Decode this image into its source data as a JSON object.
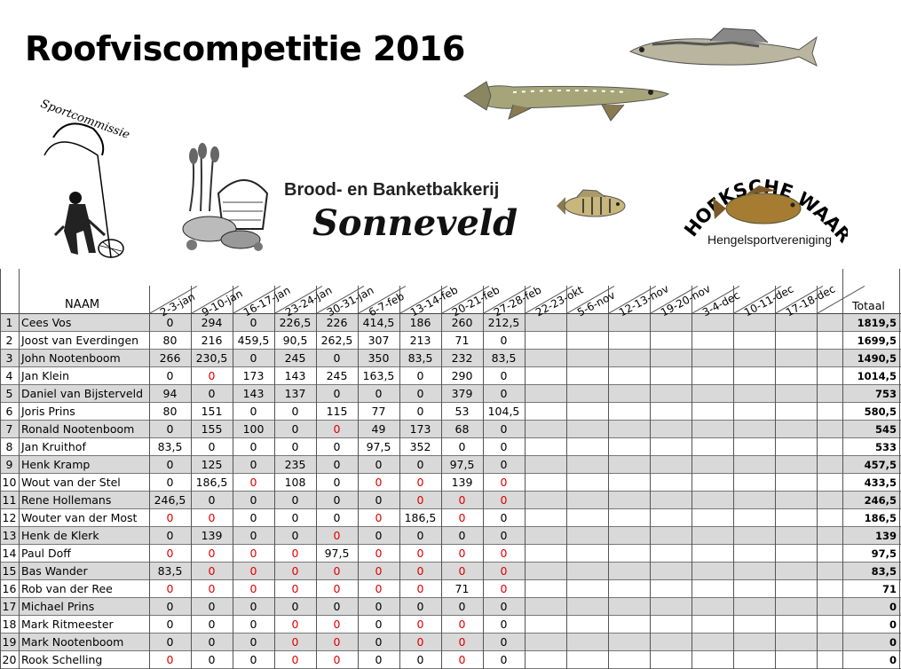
{
  "title": "Roofviscompetitie 2016",
  "sponsor": {
    "line1": "Brood- en Banketbakkerij",
    "line2": "Sonneveld"
  },
  "club": {
    "name": "HOEKSCHE WAARD",
    "sub": "Hengelsportvereniging"
  },
  "logo_text": "Sportcommissie",
  "table": {
    "name_header": "NAAM",
    "total_header": "Totaal",
    "dates": [
      "2-3-jan",
      "9-10-jan",
      "16-17-jan",
      "23-24-jan",
      "30-31-jan",
      "6-7-feb",
      "13-14-feb",
      "20-21-feb",
      "27-28-feb",
      "22-23-okt",
      "5-6-nov",
      "12-13-nov",
      "19-20-nov",
      "3-4-dec",
      "10-11-dec",
      "17-18-dec"
    ],
    "rows": [
      {
        "nr": "1",
        "name": "Cees Vos",
        "scores": [
          "0",
          "294",
          "0",
          "226,5",
          "226",
          "414,5",
          "186",
          "260",
          "212,5"
        ],
        "red": [],
        "total": "1819,5"
      },
      {
        "nr": "2",
        "name": "Joost van Everdingen",
        "scores": [
          "80",
          "216",
          "459,5",
          "90,5",
          "262,5",
          "307",
          "213",
          "71",
          "0"
        ],
        "red": [],
        "total": "1699,5"
      },
      {
        "nr": "3",
        "name": "John Nootenboom",
        "scores": [
          "266",
          "230,5",
          "0",
          "245",
          "0",
          "350",
          "83,5",
          "232",
          "83,5"
        ],
        "red": [],
        "total": "1490,5"
      },
      {
        "nr": "4",
        "name": "Jan Klein",
        "scores": [
          "0",
          "0",
          "173",
          "143",
          "245",
          "163,5",
          "0",
          "290",
          "0"
        ],
        "red": [
          1
        ],
        "total": "1014,5"
      },
      {
        "nr": "5",
        "name": "Daniel van Bijsterveld",
        "scores": [
          "94",
          "0",
          "143",
          "137",
          "0",
          "0",
          "0",
          "379",
          "0"
        ],
        "red": [],
        "total": "753"
      },
      {
        "nr": "6",
        "name": "Joris Prins",
        "scores": [
          "80",
          "151",
          "0",
          "0",
          "115",
          "77",
          "0",
          "53",
          "104,5"
        ],
        "red": [],
        "total": "580,5"
      },
      {
        "nr": "7",
        "name": "Ronald Nootenboom",
        "scores": [
          "0",
          "155",
          "100",
          "0",
          "0",
          "49",
          "173",
          "68",
          "0"
        ],
        "red": [
          4
        ],
        "total": "545"
      },
      {
        "nr": "8",
        "name": "Jan Kruithof",
        "scores": [
          "83,5",
          "0",
          "0",
          "0",
          "0",
          "97,5",
          "352",
          "0",
          "0"
        ],
        "red": [],
        "total": "533"
      },
      {
        "nr": "9",
        "name": "Henk Kramp",
        "scores": [
          "0",
          "125",
          "0",
          "235",
          "0",
          "0",
          "0",
          "97,5",
          "0"
        ],
        "red": [],
        "total": "457,5"
      },
      {
        "nr": "10",
        "name": "Wout van der Stel",
        "scores": [
          "0",
          "186,5",
          "0",
          "108",
          "0",
          "0",
          "0",
          "139",
          "0"
        ],
        "red": [
          2,
          5,
          6,
          8
        ],
        "total": "433,5"
      },
      {
        "nr": "11",
        "name": "Rene Hollemans",
        "scores": [
          "246,5",
          "0",
          "0",
          "0",
          "0",
          "0",
          "0",
          "0",
          "0"
        ],
        "red": [
          6,
          7,
          8
        ],
        "total": "246,5"
      },
      {
        "nr": "12",
        "name": "Wouter van der Most",
        "scores": [
          "0",
          "0",
          "0",
          "0",
          "0",
          "0",
          "186,5",
          "0",
          "0"
        ],
        "red": [
          0,
          1,
          5,
          7
        ],
        "total": "186,5"
      },
      {
        "nr": "13",
        "name": "Henk de Klerk",
        "scores": [
          "0",
          "139",
          "0",
          "0",
          "0",
          "0",
          "0",
          "0",
          "0"
        ],
        "red": [
          4
        ],
        "total": "139"
      },
      {
        "nr": "14",
        "name": "Paul Doff",
        "scores": [
          "0",
          "0",
          "0",
          "0",
          "97,5",
          "0",
          "0",
          "0",
          "0"
        ],
        "red": [
          0,
          1,
          2,
          3,
          5,
          6,
          7,
          8
        ],
        "total": "97,5"
      },
      {
        "nr": "15",
        "name": "Bas Wander",
        "scores": [
          "83,5",
          "0",
          "0",
          "0",
          "0",
          "0",
          "0",
          "0",
          "0"
        ],
        "red": [
          1,
          2,
          3,
          4,
          5,
          6,
          7,
          8
        ],
        "total": "83,5"
      },
      {
        "nr": "16",
        "name": "Rob van der Ree",
        "scores": [
          "0",
          "0",
          "0",
          "0",
          "0",
          "0",
          "0",
          "71",
          "0"
        ],
        "red": [
          0,
          1,
          2,
          3,
          4,
          5,
          6,
          8
        ],
        "total": "71"
      },
      {
        "nr": "17",
        "name": "Michael Prins",
        "scores": [
          "0",
          "0",
          "0",
          "0",
          "0",
          "0",
          "0",
          "0",
          "0"
        ],
        "red": [],
        "total": "0"
      },
      {
        "nr": "18",
        "name": "Mark Ritmeester",
        "scores": [
          "0",
          "0",
          "0",
          "0",
          "0",
          "0",
          "0",
          "0",
          "0"
        ],
        "red": [
          3,
          4,
          6,
          7
        ],
        "total": "0"
      },
      {
        "nr": "19",
        "name": "Mark Nootenboom",
        "scores": [
          "0",
          "0",
          "0",
          "0",
          "0",
          "0",
          "0",
          "0",
          "0"
        ],
        "red": [
          3,
          4,
          6,
          7
        ],
        "total": "0"
      },
      {
        "nr": "20",
        "name": "Rook Schelling",
        "scores": [
          "0",
          "0",
          "0",
          "0",
          "0",
          "0",
          "0",
          "0",
          "0"
        ],
        "red": [
          0,
          3,
          4,
          7
        ],
        "total": "0"
      }
    ]
  }
}
